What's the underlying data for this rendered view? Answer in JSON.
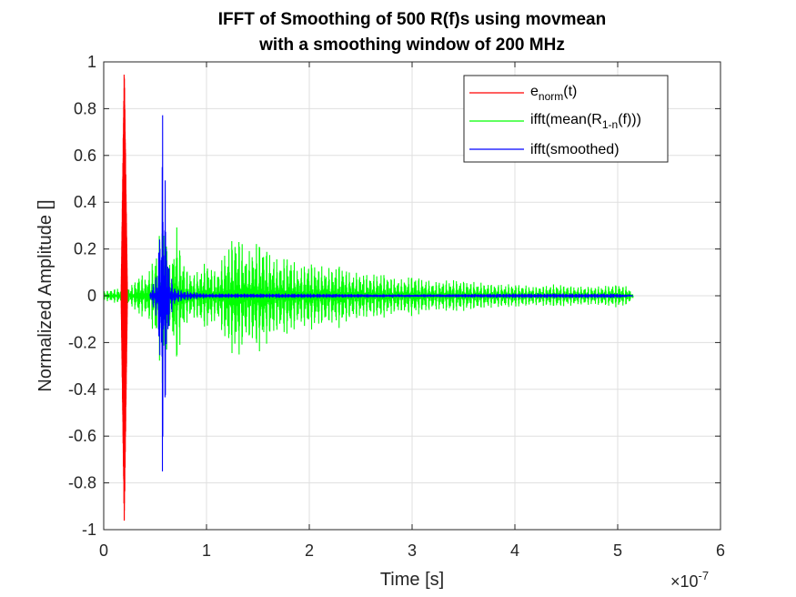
{
  "chart_data": {
    "type": "line",
    "title_line1": "IFFT of Smoothing of 500 R(f)s using movmean",
    "title_line2": "with a smoothing window of 200 MHz",
    "xlabel": "Time [s]",
    "ylabel": "Normalized Amplitude []",
    "x_exponent_base": "×10",
    "x_exponent_power": "-7",
    "xlim": [
      0,
      6
    ],
    "ylim": [
      -1,
      1
    ],
    "x_ticks": [
      0,
      1,
      2,
      3,
      4,
      5,
      6
    ],
    "x_tick_labels": [
      "0",
      "1",
      "2",
      "3",
      "4",
      "5",
      "6"
    ],
    "y_ticks": [
      -1,
      -0.8,
      -0.6,
      -0.4,
      -0.2,
      0,
      0.2,
      0.4,
      0.6,
      0.8,
      1
    ],
    "y_tick_labels": [
      "-1",
      "-0.8",
      "-0.6",
      "-0.4",
      "-0.2",
      "0",
      "0.2",
      "0.4",
      "0.6",
      "0.8",
      "1"
    ],
    "grid": true,
    "legend_position": "top-right",
    "series": [
      {
        "name_main": "e",
        "name_sub": "norm",
        "name_tail": "(t)",
        "color": "#ff0000",
        "envelope": {
          "x": [
            0.17,
            0.19,
            0.2,
            0.21,
            0.23
          ],
          "y": [
            0.05,
            0.7,
            1.0,
            0.7,
            0.05
          ]
        }
      },
      {
        "name_main": "ifft(mean(R",
        "name_sub": "1-n",
        "name_tail": "(f)))",
        "color": "#00ff00",
        "envelope": {
          "x": [
            0.0,
            0.1,
            0.25,
            0.3,
            0.35,
            0.4,
            0.45,
            0.5,
            0.55,
            0.58,
            0.6,
            0.62,
            0.65,
            0.7,
            0.75,
            0.8,
            0.85,
            0.9,
            1.0,
            1.1,
            1.2,
            1.3,
            1.4,
            1.5,
            1.6,
            1.7,
            1.8,
            1.9,
            2.0,
            2.1,
            2.2,
            2.3,
            2.4,
            2.5,
            2.6,
            2.7,
            2.8,
            2.9,
            3.0,
            3.2,
            3.4,
            3.6,
            3.8,
            4.0,
            4.2,
            4.4,
            4.6,
            4.8,
            5.0,
            5.1,
            5.15
          ],
          "y": [
            0.02,
            0.03,
            0.04,
            0.06,
            0.1,
            0.08,
            0.12,
            0.18,
            0.3,
            0.5,
            0.32,
            0.22,
            0.1,
            0.33,
            0.2,
            0.12,
            0.1,
            0.1,
            0.15,
            0.1,
            0.22,
            0.28,
            0.18,
            0.25,
            0.2,
            0.15,
            0.18,
            0.12,
            0.15,
            0.13,
            0.12,
            0.14,
            0.1,
            0.1,
            0.09,
            0.1,
            0.08,
            0.07,
            0.09,
            0.06,
            0.07,
            0.06,
            0.05,
            0.05,
            0.04,
            0.05,
            0.04,
            0.04,
            0.05,
            0.04,
            0.01
          ]
        }
      },
      {
        "name_main": "ifft(smoothed)",
        "name_sub": "",
        "name_tail": "",
        "color": "#0000ff",
        "envelope": {
          "x": [
            0.45,
            0.52,
            0.56,
            0.58,
            0.6,
            0.64,
            0.7,
            0.8,
            1.0,
            1.5,
            2.0,
            3.0,
            4.0,
            5.0,
            5.15
          ],
          "y": [
            0.02,
            0.1,
            0.5,
            1.0,
            0.5,
            0.1,
            0.03,
            0.02,
            0.01,
            0.01,
            0.01,
            0.005,
            0.01,
            0.01,
            0.0
          ]
        }
      }
    ]
  }
}
